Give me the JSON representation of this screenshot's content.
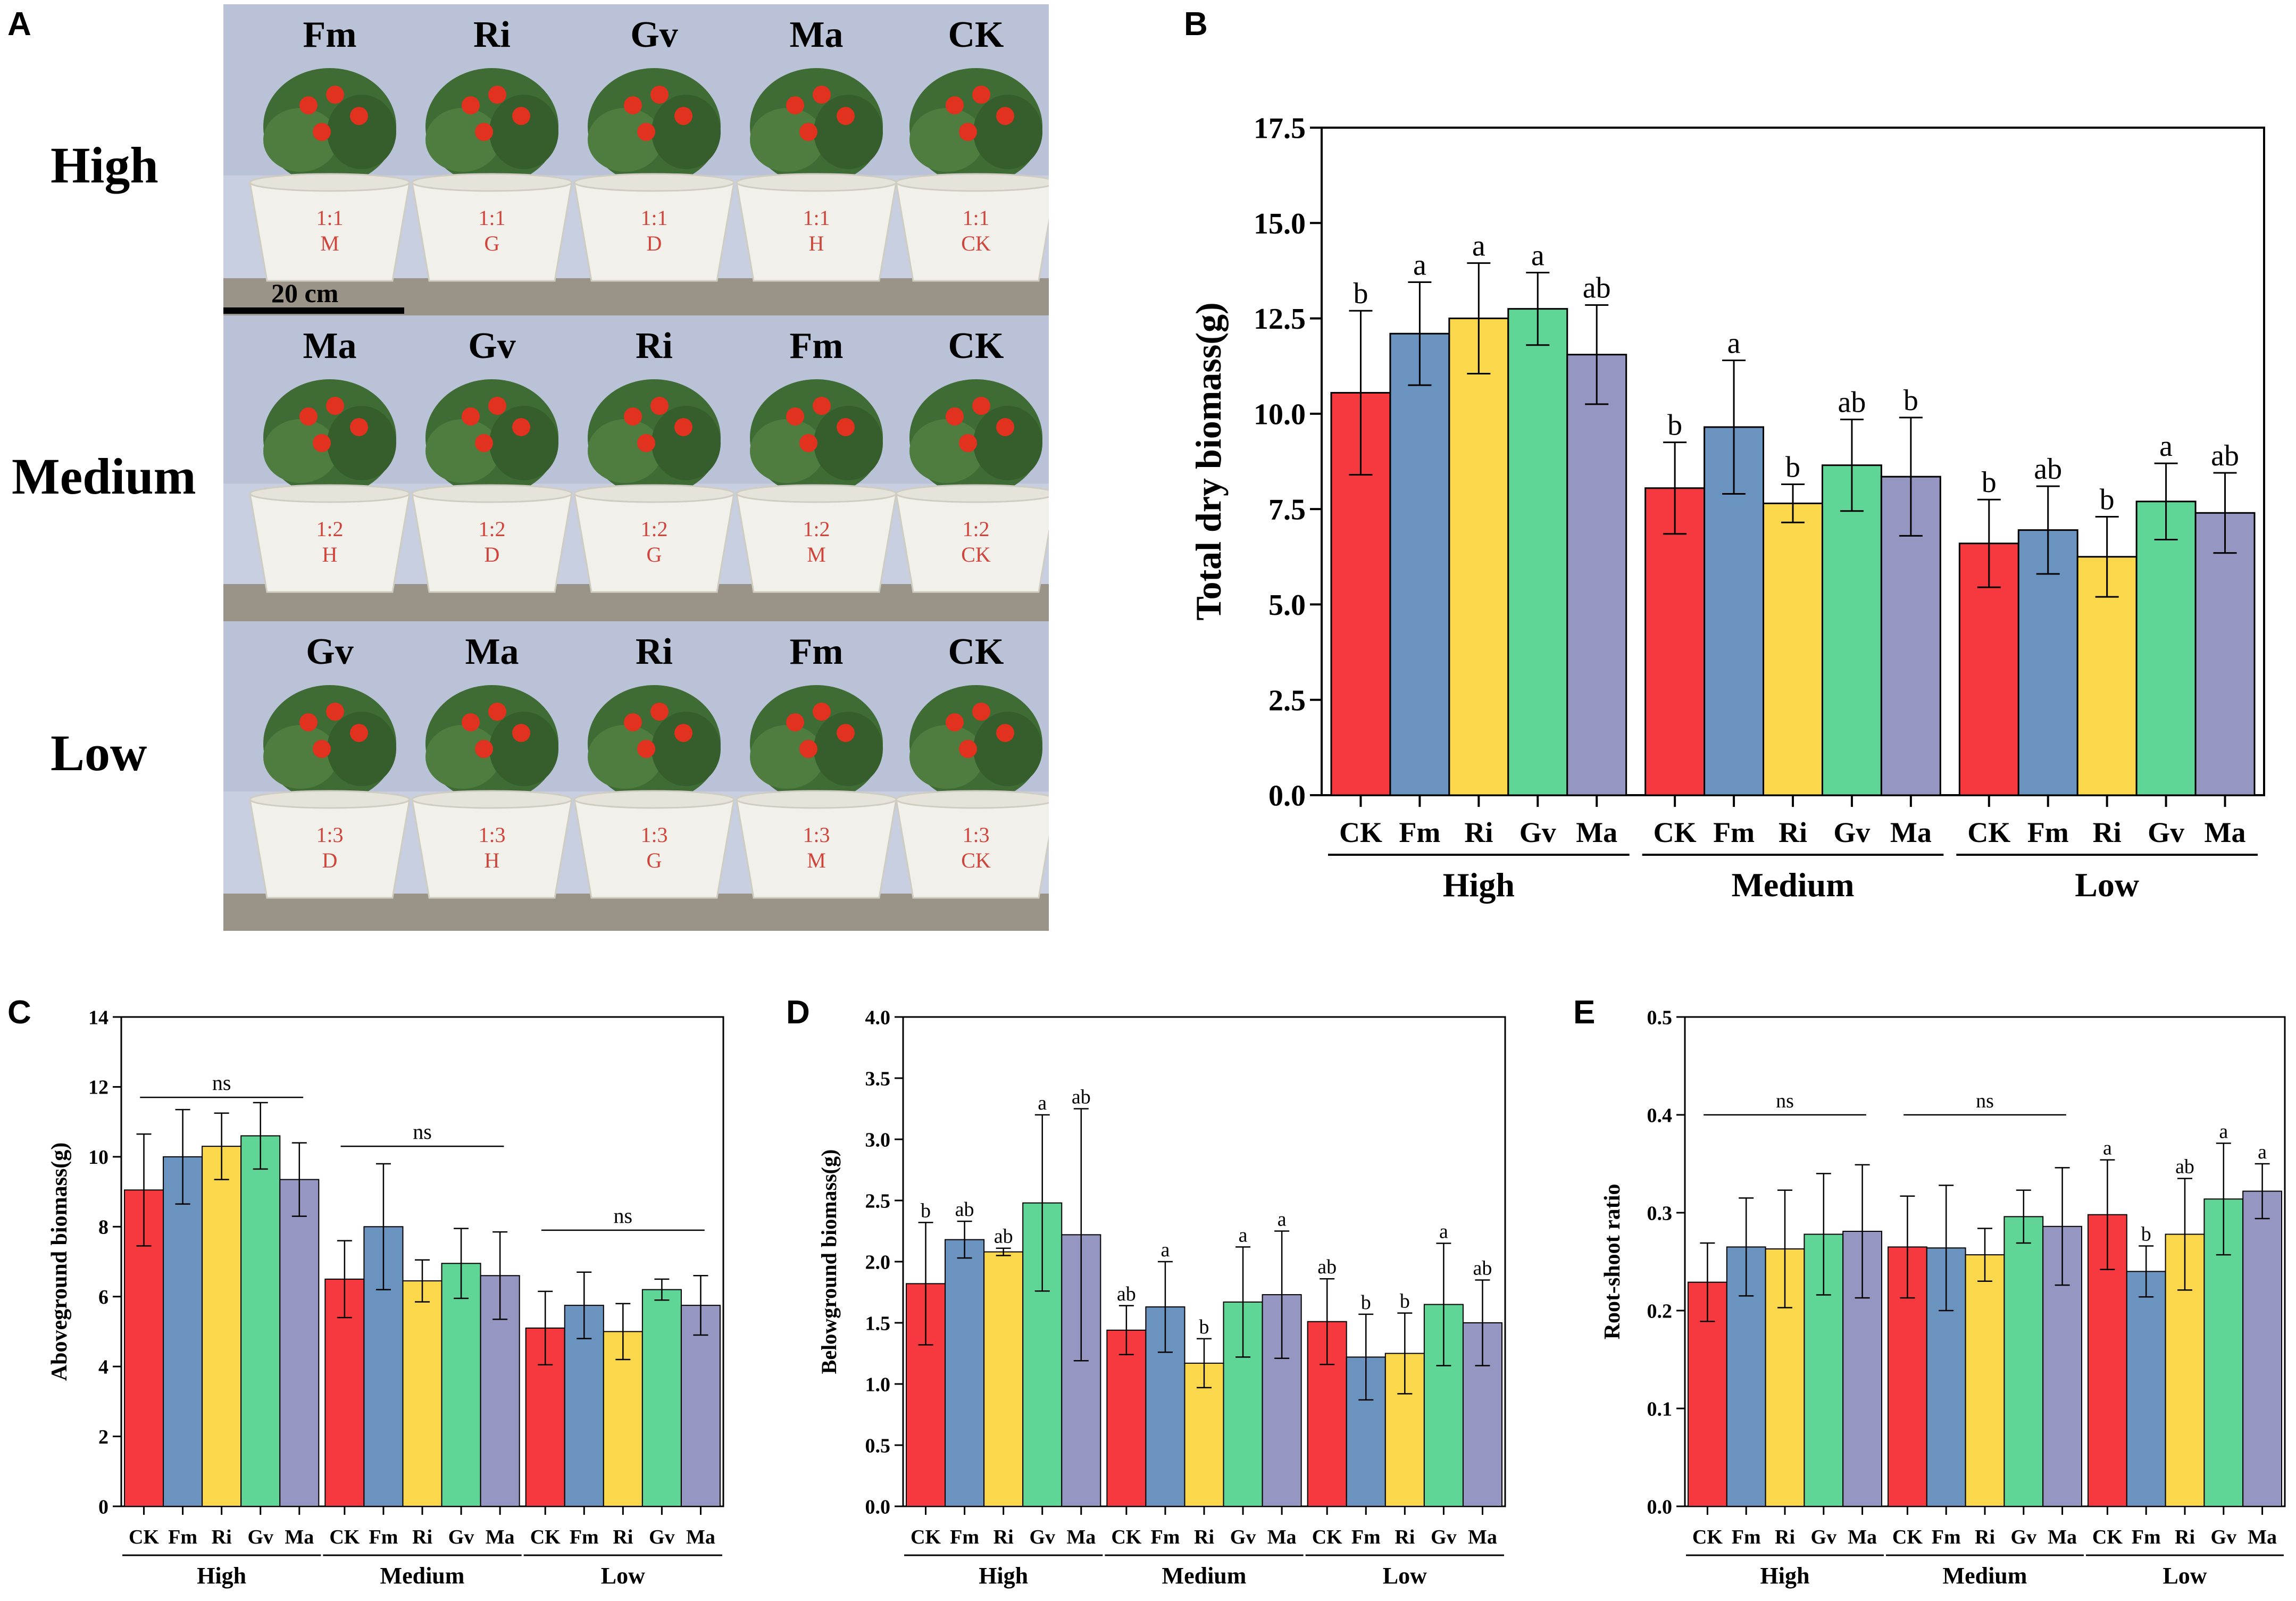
{
  "panels": {
    "A": "A",
    "B": "B",
    "C": "C",
    "D": "D",
    "E": "E"
  },
  "photo": {
    "row_labels": [
      "High",
      "Medium",
      "Low"
    ],
    "rows": [
      {
        "plants": [
          "Fm",
          "Ri",
          "Gv",
          "Ma",
          "CK"
        ],
        "pot_labels": [
          "1:1\nM",
          "1:1\nG",
          "1:1\nD",
          "1:1\nH",
          "1:1\nCK"
        ]
      },
      {
        "plants": [
          "Ma",
          "Gv",
          "Ri",
          "Fm",
          "CK"
        ],
        "pot_labels": [
          "1:2\nH",
          "1:2\nD",
          "1:2\nG",
          "1:2\nM",
          "1:2\nCK"
        ]
      },
      {
        "plants": [
          "Gv",
          "Ma",
          "Ri",
          "Fm",
          "CK"
        ],
        "pot_labels": [
          "1:3\nD",
          "1:3\nH",
          "1:3\nG",
          "1:3\nM",
          "1:3\nCK"
        ]
      }
    ],
    "scale_bar": "20 cm"
  },
  "colors": {
    "CK": "#f5393f",
    "Fm": "#6a93c0",
    "Ri": "#fbd74b",
    "Gv": "#5fd695",
    "Ma": "#9696c2"
  },
  "chart_data": [
    {
      "id": "B",
      "type": "bar",
      "title": "",
      "xlabel": "",
      "ylabel": "Total dry biomass(g)",
      "ylim": [
        0,
        17.5
      ],
      "yticks": [
        "0.0",
        "2.5",
        "5.0",
        "7.5",
        "10.0",
        "12.5",
        "15.0",
        "17.5"
      ],
      "groups": [
        "High",
        "Medium",
        "Low"
      ],
      "categories": [
        "CK",
        "Fm",
        "Ri",
        "Gv",
        "Ma"
      ],
      "series": [
        {
          "name": "High",
          "values": [
            10.55,
            12.1,
            12.5,
            12.75,
            11.55
          ],
          "errors": [
            2.15,
            1.35,
            1.45,
            0.95,
            1.3
          ],
          "letters": [
            "b",
            "a",
            "a",
            "a",
            "ab"
          ]
        },
        {
          "name": "Medium",
          "values": [
            8.05,
            9.65,
            7.65,
            8.65,
            8.35
          ],
          "errors": [
            1.2,
            1.75,
            0.5,
            1.2,
            1.55
          ],
          "letters": [
            "b",
            "a",
            "b",
            "ab",
            "b"
          ]
        },
        {
          "name": "Low",
          "values": [
            6.6,
            6.95,
            6.25,
            7.7,
            7.4
          ],
          "errors": [
            1.15,
            1.15,
            1.05,
            1.0,
            1.05
          ],
          "letters": [
            "b",
            "ab",
            "b",
            "a",
            "ab"
          ]
        }
      ],
      "group_annotations": []
    },
    {
      "id": "C",
      "type": "bar",
      "title": "",
      "xlabel": "",
      "ylabel": "Aboveground biomass(g)",
      "ylim": [
        0,
        14
      ],
      "yticks": [
        "0",
        "2",
        "4",
        "6",
        "8",
        "10",
        "12",
        "14"
      ],
      "groups": [
        "High",
        "Medium",
        "Low"
      ],
      "categories": [
        "CK",
        "Fm",
        "Ri",
        "Gv",
        "Ma"
      ],
      "series": [
        {
          "name": "High",
          "values": [
            9.05,
            10.0,
            10.3,
            10.6,
            9.35
          ],
          "errors": [
            1.6,
            1.35,
            0.95,
            0.95,
            1.05
          ],
          "letters": [
            "",
            "",
            "",
            "",
            ""
          ]
        },
        {
          "name": "Medium",
          "values": [
            6.5,
            8.0,
            6.45,
            6.95,
            6.6
          ],
          "errors": [
            1.1,
            1.8,
            0.6,
            1.0,
            1.25
          ],
          "letters": [
            "",
            "",
            "",
            "",
            ""
          ]
        },
        {
          "name": "Low",
          "values": [
            5.1,
            5.75,
            5.0,
            6.2,
            5.75
          ],
          "errors": [
            1.05,
            0.95,
            0.8,
            0.3,
            0.85
          ],
          "letters": [
            "",
            "",
            "",
            "",
            ""
          ]
        }
      ],
      "group_annotations": [
        {
          "label": "ns",
          "y": 11.7
        },
        {
          "label": "ns",
          "y": 10.3
        },
        {
          "label": "ns",
          "y": 7.9
        }
      ]
    },
    {
      "id": "D",
      "type": "bar",
      "title": "",
      "xlabel": "",
      "ylabel": "Belowground biomass(g)",
      "ylim": [
        0,
        4.0
      ],
      "yticks": [
        "0.0",
        "0.5",
        "1.0",
        "1.5",
        "2.0",
        "2.5",
        "3.0",
        "3.5",
        "4.0"
      ],
      "groups": [
        "High",
        "Medium",
        "Low"
      ],
      "categories": [
        "CK",
        "Fm",
        "Ri",
        "Gv",
        "Ma"
      ],
      "series": [
        {
          "name": "High",
          "values": [
            1.82,
            2.18,
            2.08,
            2.48,
            2.22
          ],
          "errors": [
            0.5,
            0.15,
            0.03,
            0.72,
            1.03
          ],
          "letters": [
            "b",
            "ab",
            "ab",
            "a",
            "ab"
          ]
        },
        {
          "name": "Medium",
          "values": [
            1.44,
            1.63,
            1.17,
            1.67,
            1.73
          ],
          "errors": [
            0.2,
            0.37,
            0.2,
            0.45,
            0.52
          ],
          "letters": [
            "ab",
            "a",
            "b",
            "a",
            "a"
          ]
        },
        {
          "name": "Low",
          "values": [
            1.51,
            1.22,
            1.25,
            1.65,
            1.5
          ],
          "errors": [
            0.35,
            0.35,
            0.33,
            0.5,
            0.35
          ],
          "letters": [
            "ab",
            "b",
            "b",
            "a",
            "ab"
          ]
        }
      ],
      "group_annotations": []
    },
    {
      "id": "E",
      "type": "bar",
      "title": "",
      "xlabel": "",
      "ylabel": "Root-shoot ratio",
      "ylim": [
        0,
        0.5
      ],
      "yticks": [
        "0.0",
        "0.1",
        "0.2",
        "0.3",
        "0.4",
        "0.5"
      ],
      "groups": [
        "High",
        "Medium",
        "Low"
      ],
      "categories": [
        "CK",
        "Fm",
        "Ri",
        "Gv",
        "Ma"
      ],
      "series": [
        {
          "name": "High",
          "values": [
            0.229,
            0.265,
            0.263,
            0.278,
            0.281
          ],
          "errors": [
            0.04,
            0.05,
            0.06,
            0.062,
            0.068
          ],
          "letters": [
            "",
            "",
            "",
            "",
            ""
          ]
        },
        {
          "name": "Medium",
          "values": [
            0.265,
            0.264,
            0.257,
            0.296,
            0.286
          ],
          "errors": [
            0.052,
            0.064,
            0.027,
            0.027,
            0.06
          ],
          "letters": [
            "",
            "",
            "",
            "",
            ""
          ]
        },
        {
          "name": "Low",
          "values": [
            0.298,
            0.24,
            0.278,
            0.314,
            0.322
          ],
          "errors": [
            0.056,
            0.026,
            0.057,
            0.057,
            0.028
          ],
          "letters": [
            "a",
            "b",
            "ab",
            "a",
            "a"
          ]
        }
      ],
      "group_annotations": [
        {
          "label": "ns",
          "y": 0.4
        },
        {
          "label": "ns",
          "y": 0.4
        }
      ]
    }
  ]
}
